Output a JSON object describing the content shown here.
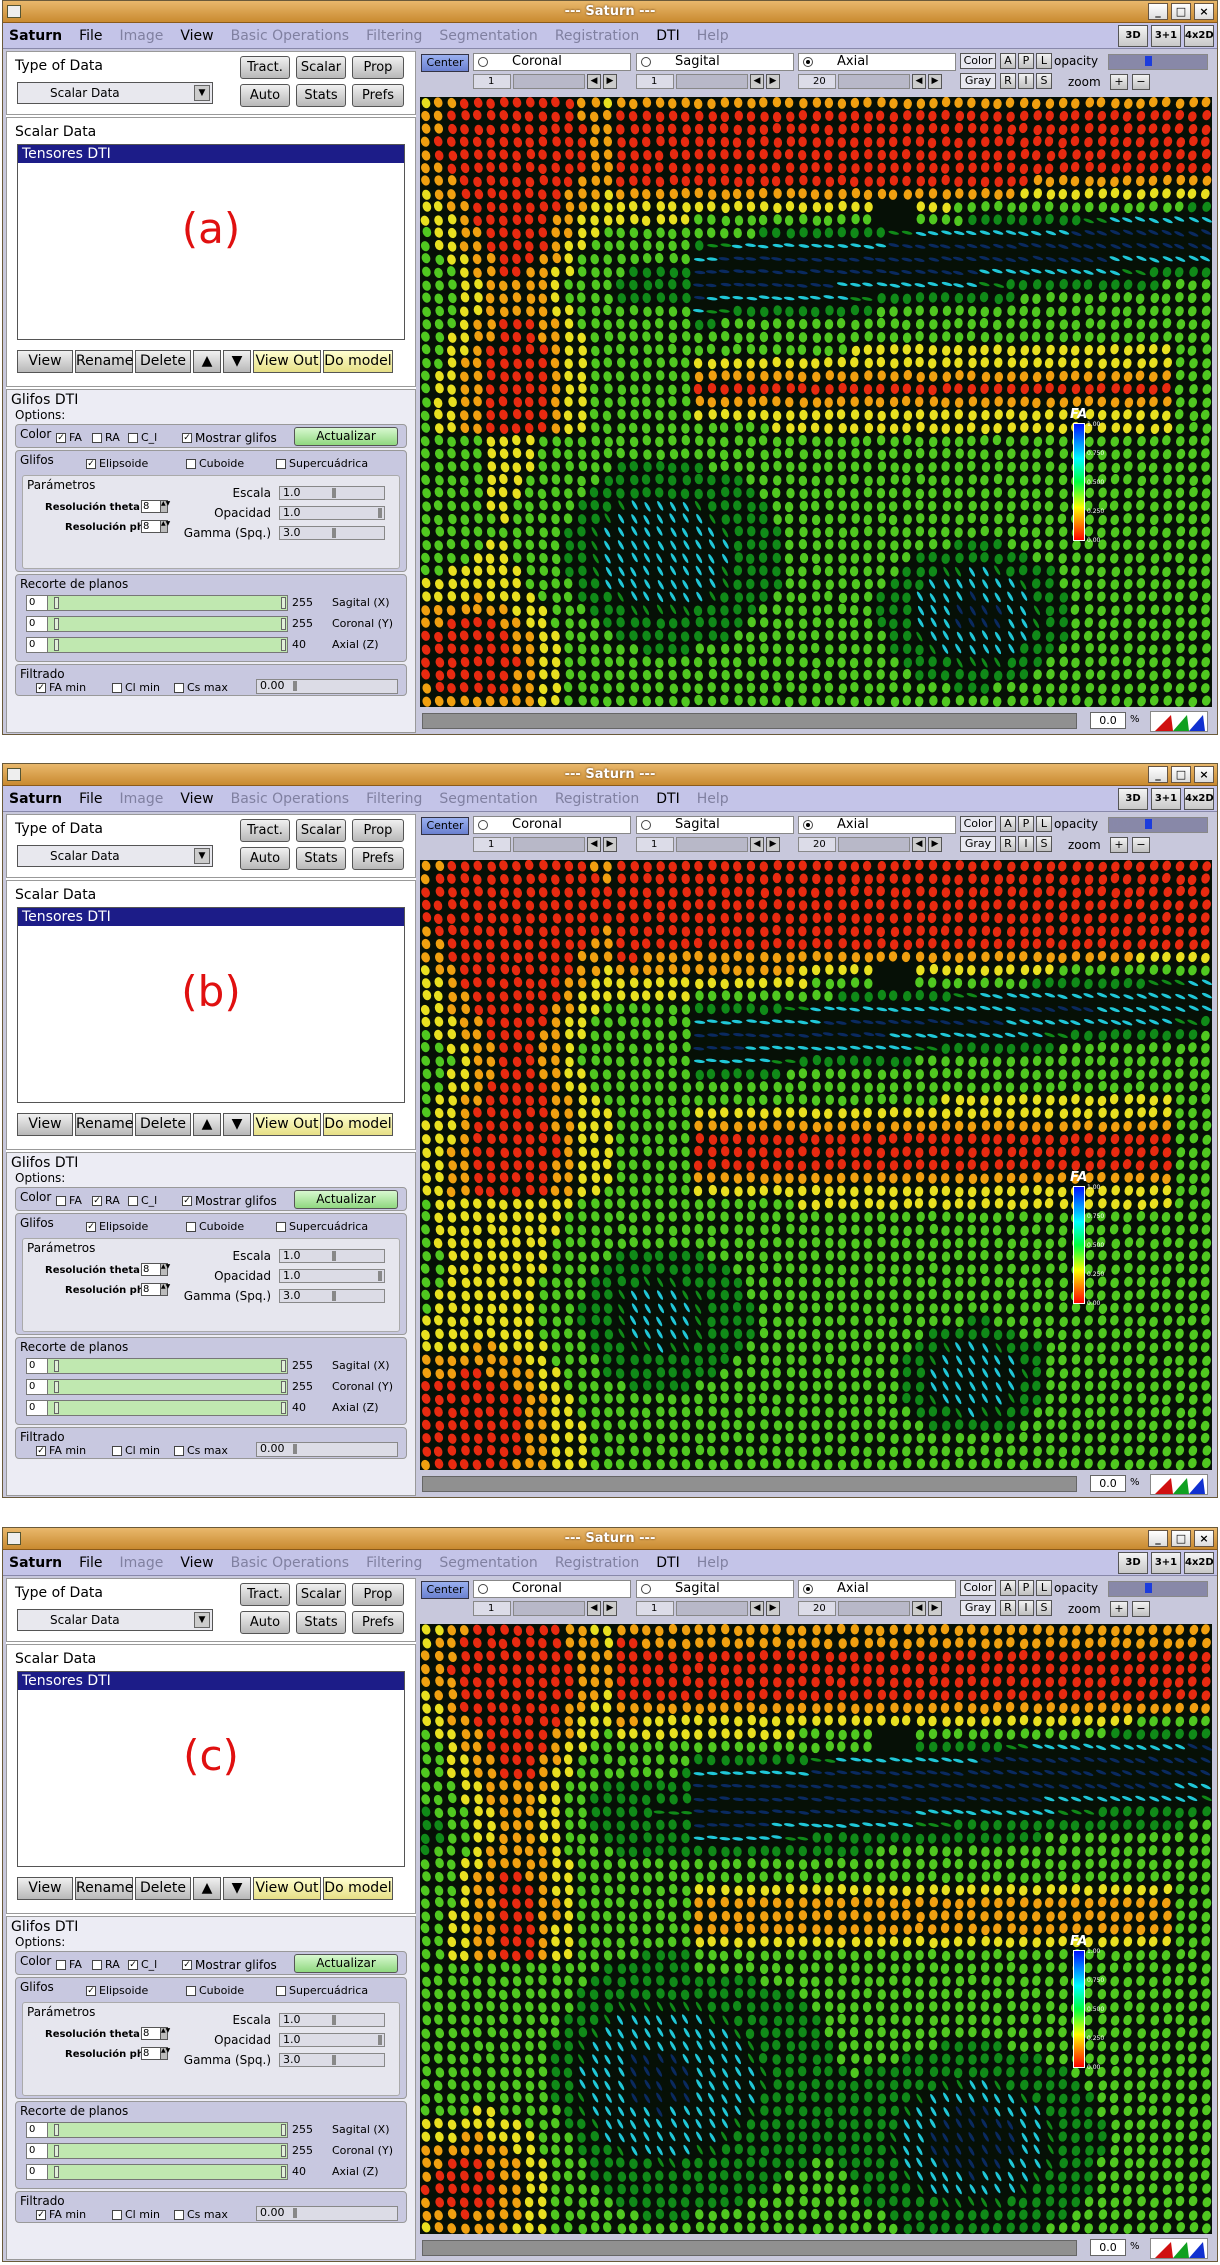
{
  "window": {
    "title": "--- Saturn ---"
  },
  "menu": {
    "items": [
      "Saturn",
      "File",
      "Image",
      "View",
      "Basic Operations",
      "Filtering",
      "Segmentation",
      "Registration",
      "DTI",
      "Help"
    ],
    "disabled": [
      2,
      4,
      5,
      6,
      7,
      9
    ]
  },
  "view_buttons": [
    "3D",
    "3+1",
    "4x2D"
  ],
  "type_of_data": {
    "label": "Type of Data",
    "value": "Scalar Data"
  },
  "top_buttons": [
    "Tract.",
    "Scalar",
    "Prop",
    "Auto",
    "Stats",
    "Prefs"
  ],
  "scalar_data": {
    "label": "Scalar Data",
    "selected": "Tensores DTI"
  },
  "list_buttons": [
    "View",
    "Rename",
    "Delete",
    "▲",
    "▼",
    "View Out",
    "Do model"
  ],
  "glifos": {
    "title": "Glifos DTI",
    "options_label": "Options:",
    "color_label": "Color",
    "color_opts": [
      "FA",
      "RA",
      "C_l"
    ],
    "mostrar_label": "Mostrar glifos",
    "actualizar": "Actualizar",
    "glifos_label": "Glifos",
    "shapes": [
      "Elipsoide",
      "Cuboide",
      "Supercuádrica"
    ],
    "parametros": "Parámetros",
    "res_theta": {
      "label": "Resolución theta",
      "value": "8"
    },
    "res_phi": {
      "label": "Resolución phi",
      "value": "8"
    },
    "escala": {
      "label": "Escala",
      "value": "1.0"
    },
    "opacidad": {
      "label": "Opacidad",
      "value": "1.0"
    },
    "gamma": {
      "label": "Gamma (Spq.)",
      "value": "3.0"
    },
    "recorte": "Recorte de planos",
    "planes": [
      {
        "min": "0",
        "max": "255",
        "label": "Sagital (X)"
      },
      {
        "min": "0",
        "max": "255",
        "label": "Coronal (Y)"
      },
      {
        "min": "0",
        "max": "40",
        "label": "Axial (Z)"
      }
    ],
    "filtrado": "Filtrado",
    "filters": [
      "FA min",
      "Cl min",
      "Cs max"
    ],
    "filter_value": "0.00"
  },
  "viewer": {
    "center": "Center",
    "views": [
      {
        "name": "Coronal",
        "value": "1",
        "checked": false
      },
      {
        "name": "Sagital",
        "value": "1",
        "checked": false
      },
      {
        "name": "Axial",
        "value": "20",
        "checked": true
      }
    ],
    "color_btn": "Color",
    "apl": [
      "A",
      "P",
      "L"
    ],
    "gray_btn": "Gray",
    "ris": [
      "R",
      "I",
      "S"
    ],
    "opacity_label": "opacity",
    "opacity_value": "0.0",
    "zoom_label": "zoom",
    "zoom_plus": "+",
    "zoom_minus": "−",
    "status_value": "0.0",
    "status_unit": "%"
  },
  "colorbar": {
    "title": "FA",
    "ticks": [
      "1.00",
      "0.750",
      "0.500",
      "0.250",
      "0.00"
    ]
  },
  "panels": [
    {
      "label": "(a)",
      "color_checked": [
        true,
        false,
        false
      ]
    },
    {
      "label": "(b)",
      "color_checked": [
        false,
        true,
        false
      ]
    },
    {
      "label": "(c)",
      "color_checked": [
        false,
        false,
        true
      ]
    }
  ]
}
